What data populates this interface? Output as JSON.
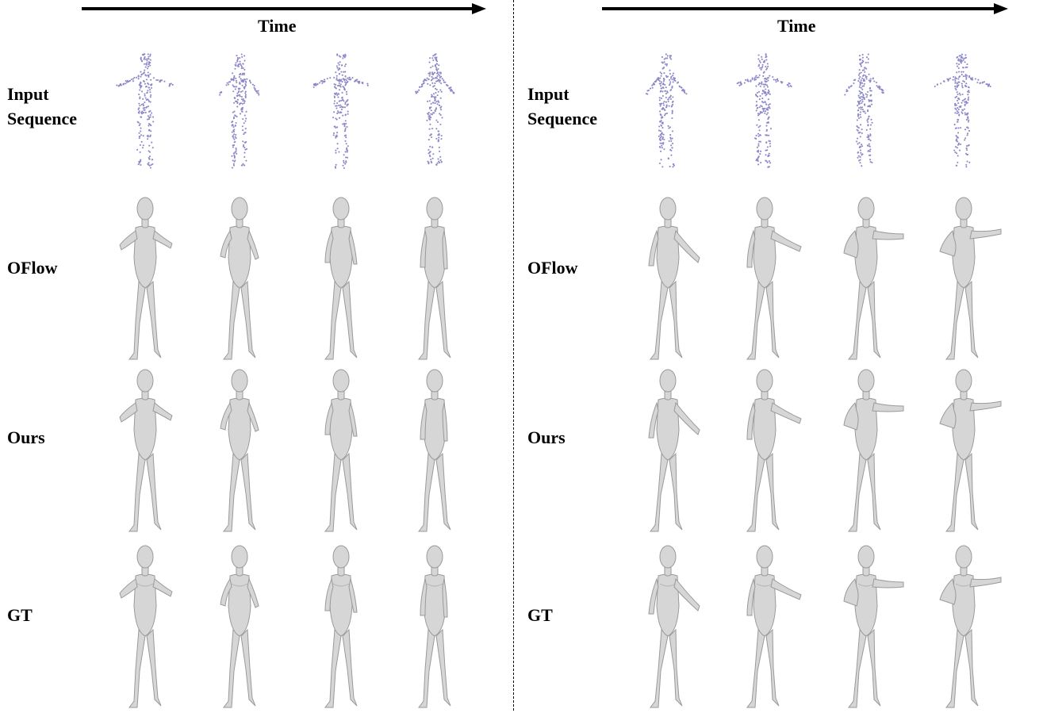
{
  "panels": [
    {
      "id": "left",
      "time_label": "Time",
      "rows": [
        {
          "key": "input",
          "label_line1": "Input",
          "label_line2": "Sequence"
        },
        {
          "key": "oflow",
          "label_line1": "OFlow",
          "label_line2": ""
        },
        {
          "key": "ours",
          "label_line1": "Ours",
          "label_line2": ""
        },
        {
          "key": "gt",
          "label_line1": "GT",
          "label_line2": ""
        }
      ],
      "frames": 4
    },
    {
      "id": "right",
      "time_label": "Time",
      "rows": [
        {
          "key": "input",
          "label_line1": "Input",
          "label_line2": "Sequence"
        },
        {
          "key": "oflow",
          "label_line1": "OFlow",
          "label_line2": ""
        },
        {
          "key": "ours",
          "label_line1": "Ours",
          "label_line2": ""
        },
        {
          "key": "gt",
          "label_line1": "GT",
          "label_line2": ""
        }
      ],
      "frames": 4
    }
  ],
  "colors": {
    "point_cloud": "#8c88c8",
    "mesh_fill": "#d6d6d6",
    "mesh_edge": "#9a9a9a",
    "text": "#000000"
  }
}
